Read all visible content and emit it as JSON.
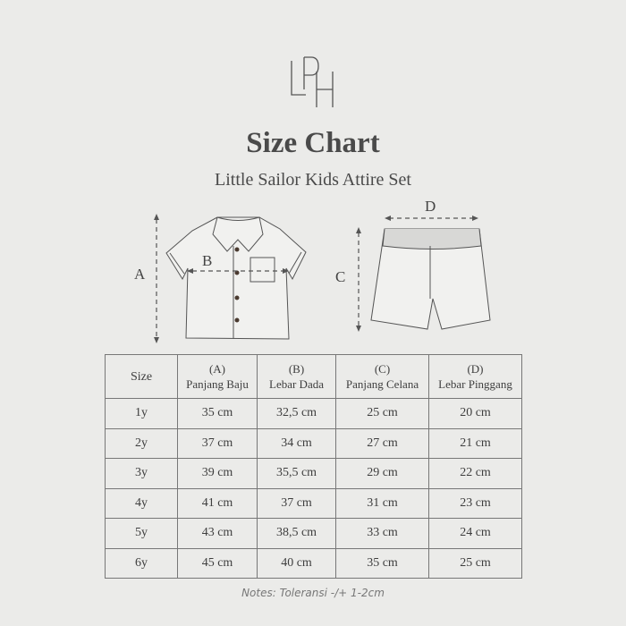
{
  "brand": {
    "logo_text": "LPH"
  },
  "title": "Size Chart",
  "subtitle": "Little Sailor Kids Attire Set",
  "diagram": {
    "labels": {
      "a": "A",
      "b": "B",
      "c": "C",
      "d": "D"
    }
  },
  "table": {
    "headers": [
      {
        "code": "",
        "label": "Size"
      },
      {
        "code": "(A)",
        "label": "Panjang Baju"
      },
      {
        "code": "(B)",
        "label": "Lebar Dada"
      },
      {
        "code": "(C)",
        "label": "Panjang Celana"
      },
      {
        "code": "(D)",
        "label": "Lebar Pinggang"
      }
    ],
    "rows": [
      [
        "1y",
        "35 cm",
        "32,5 cm",
        "25 cm",
        "20 cm"
      ],
      [
        "2y",
        "37 cm",
        "34 cm",
        "27 cm",
        "21 cm"
      ],
      [
        "3y",
        "39 cm",
        "35,5 cm",
        "29 cm",
        "22 cm"
      ],
      [
        "4y",
        "41 cm",
        "37 cm",
        "31 cm",
        "23 cm"
      ],
      [
        "5y",
        "43 cm",
        "38,5 cm",
        "33 cm",
        "24 cm"
      ],
      [
        "6y",
        "45 cm",
        "40 cm",
        "35 cm",
        "25 cm"
      ]
    ]
  },
  "note": "Notes: Toleransi -/+ 1-2cm"
}
